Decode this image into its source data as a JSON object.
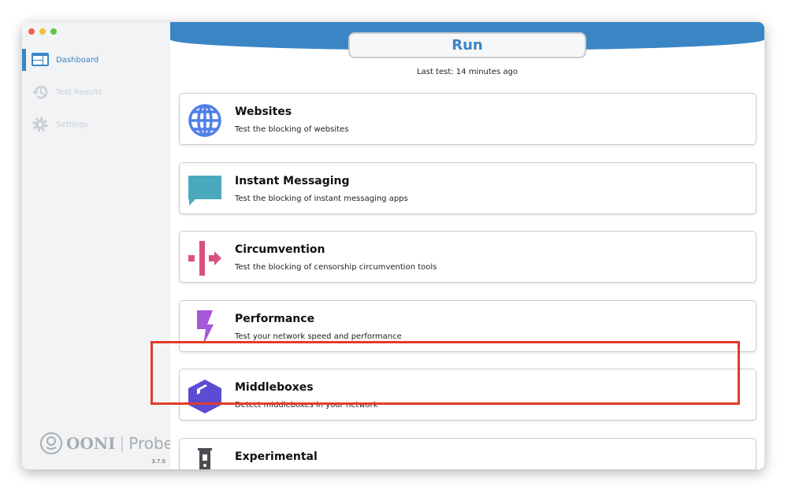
{
  "window": {
    "traffic_lights": [
      "#ee5e56",
      "#f6bd3b",
      "#5fc747"
    ]
  },
  "sidebar": {
    "items": [
      {
        "label": "Dashboard",
        "icon": "dashboard-icon",
        "active": true
      },
      {
        "label": "Test Results",
        "icon": "history-icon",
        "active": false
      },
      {
        "label": "Settings",
        "icon": "gear-icon",
        "active": false
      }
    ],
    "logo": {
      "brand": "OONI",
      "product": "Probe"
    },
    "version": "3.7.0"
  },
  "header": {
    "run_label": "Run",
    "last_test": "Last test:  14 minutes ago",
    "accent": "#3a85c4"
  },
  "cards": [
    {
      "title": "Websites",
      "description": "Test the blocking of websites",
      "icon": "globe-icon",
      "color": "#4f7fe8"
    },
    {
      "title": "Instant Messaging",
      "description": "Test the blocking of instant messaging apps",
      "icon": "chat-bubble-icon",
      "color": "#4aa9bd"
    },
    {
      "title": "Circumvention",
      "description": "Test the blocking of censorship circumvention tools",
      "icon": "circumvention-icon",
      "color": "#d9517c"
    },
    {
      "title": "Performance",
      "description": "Test your network speed and performance",
      "icon": "lightning-icon",
      "color": "#a659d6"
    },
    {
      "title": "Middleboxes",
      "description": "Detect middleboxes in your network",
      "icon": "box-icon",
      "color": "#5b4cd4",
      "highlighted": true
    },
    {
      "title": "Experimental",
      "description": "",
      "icon": "test-tube-icon",
      "color": "#4a4d52"
    }
  ]
}
